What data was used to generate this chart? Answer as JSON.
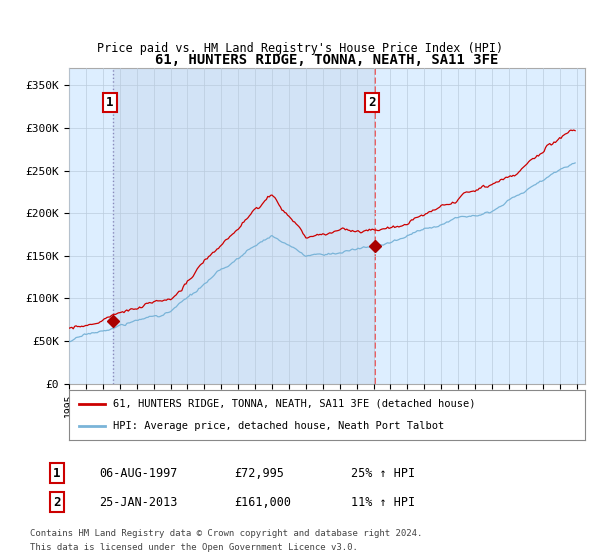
{
  "title": "61, HUNTERS RIDGE, TONNA, NEATH, SA11 3FE",
  "subtitle": "Price paid vs. HM Land Registry's House Price Index (HPI)",
  "ylabel_ticks": [
    "£0",
    "£50K",
    "£100K",
    "£150K",
    "£200K",
    "£250K",
    "£300K",
    "£350K"
  ],
  "ytick_values": [
    0,
    50000,
    100000,
    150000,
    200000,
    250000,
    300000,
    350000
  ],
  "ylim": [
    0,
    370000
  ],
  "xlim_start": 1995.0,
  "xlim_end": 2025.5,
  "xtick_years": [
    1995,
    1996,
    1997,
    1998,
    1999,
    2000,
    2001,
    2002,
    2003,
    2004,
    2005,
    2006,
    2007,
    2008,
    2009,
    2010,
    2011,
    2012,
    2013,
    2014,
    2015,
    2016,
    2017,
    2018,
    2019,
    2020,
    2021,
    2022,
    2023,
    2024,
    2025
  ],
  "sale1_date": 1997.59,
  "sale1_price": 72995,
  "sale1_label": "1",
  "sale2_date": 2013.07,
  "sale2_price": 161000,
  "sale2_label": "2",
  "hpi_color": "#7ab4d8",
  "price_color": "#cc0000",
  "sale_marker_color": "#aa0000",
  "vline1_color": "#8888bb",
  "vline1_style": ":",
  "vline2_color": "#ee4444",
  "vline2_style": "--",
  "bg_color": "#ddeeff",
  "shade_color": "#ccddf0",
  "plot_bg": "#ffffff",
  "grid_color": "#bbccdd",
  "legend_line1": "61, HUNTERS RIDGE, TONNA, NEATH, SA11 3FE (detached house)",
  "legend_line2": "HPI: Average price, detached house, Neath Port Talbot",
  "table_row1": [
    "1",
    "06-AUG-1997",
    "£72,995",
    "25% ↑ HPI"
  ],
  "table_row2": [
    "2",
    "25-JAN-2013",
    "£161,000",
    "11% ↑ HPI"
  ],
  "footer1": "Contains HM Land Registry data © Crown copyright and database right 2024.",
  "footer2": "This data is licensed under the Open Government Licence v3.0."
}
